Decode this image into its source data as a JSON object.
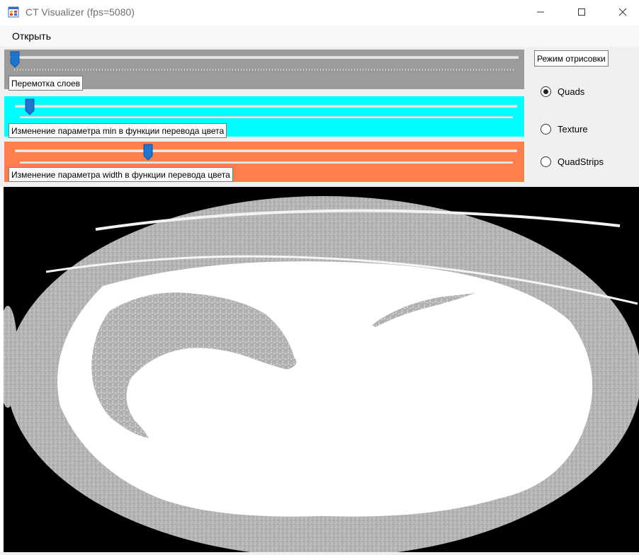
{
  "window": {
    "title": "CT Visualizer (fps=5080)",
    "icon": "app-window-icon"
  },
  "menu": {
    "open_label": "Открыть"
  },
  "sliders": {
    "layers": {
      "label": "Перемотка слоев",
      "value_fraction": 0.0,
      "color": "#9b9b9b"
    },
    "min": {
      "label": "Изменение параметра min в функции перевода цвета",
      "value_fraction": 0.02,
      "color": "#00fdff"
    },
    "width": {
      "label": "Изменение параметра width в функции перевода цвета",
      "value_fraction": 0.26,
      "color": "#fd7f4e"
    }
  },
  "render_mode": {
    "title": "Режим отрисовки",
    "options": [
      {
        "label": "Quads",
        "selected": true
      },
      {
        "label": "Texture",
        "selected": false
      },
      {
        "label": "QuadStrips",
        "selected": false
      }
    ]
  },
  "viewport": {
    "content": "ct-slice-image",
    "background": "#000000"
  }
}
